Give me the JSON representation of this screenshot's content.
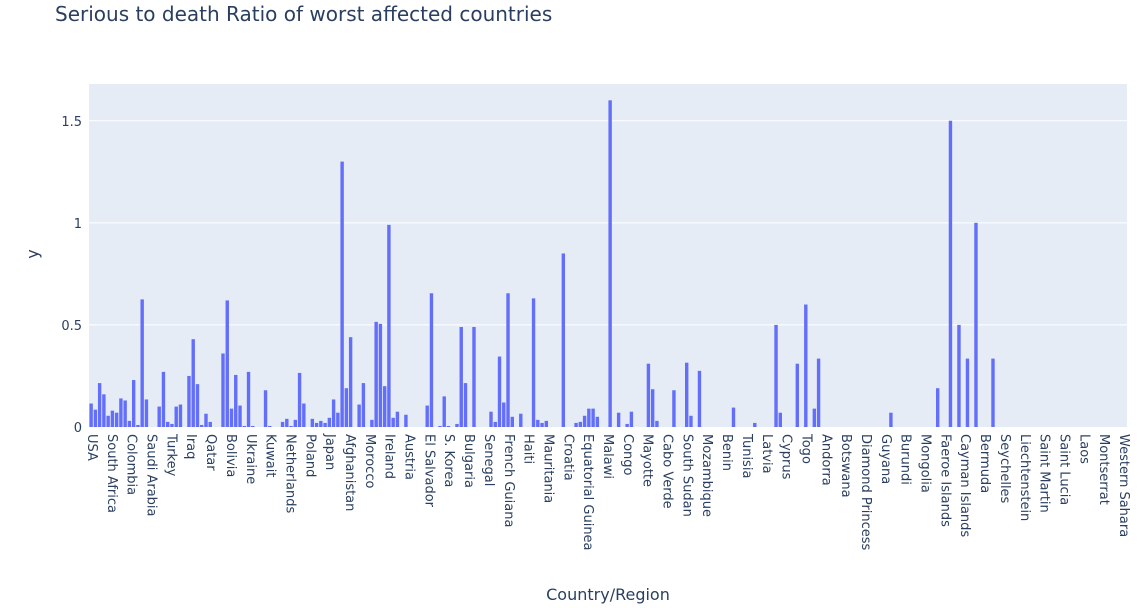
{
  "chart_data": {
    "type": "bar",
    "title": "Serious to death Ratio of worst affected countries",
    "xlabel": "Country/Region",
    "ylabel": "y",
    "ylim": [
      0,
      1.68
    ],
    "yticks": [
      0,
      0.5,
      1,
      1.5
    ],
    "ytick_labels": [
      "0",
      "0.5",
      "1",
      "1.5"
    ],
    "grid": true,
    "bar_color": "#636efa",
    "plot_bg": "#e5ecf6",
    "tick_labels": [
      "USA",
      "South Africa",
      "Colombia",
      "Saudi Arabia",
      "Turkey",
      "Iraq",
      "Qatar",
      "Bolivia",
      "Ukraine",
      "Kuwait",
      "Netherlands",
      "Poland",
      "Japan",
      "Afghanistan",
      "Morocco",
      "Ireland",
      "Austria",
      "El Salvador",
      "S. Korea",
      "Bulgaria",
      "Senegal",
      "French Guiana",
      "Haiti",
      "Mauritania",
      "Croatia",
      "Equatorial Guinea",
      "Malawi",
      "Congo",
      "Mayotte",
      "Cabo Verde",
      "South Sudan",
      "Mozambique",
      "Benin",
      "Tunisia",
      "Latvia",
      "Cyprus",
      "Togo",
      "Andorra",
      "Botswana",
      "Diamond Princess",
      "Guyana",
      "Burundi",
      "Mongolia",
      "Faeroe Islands",
      "Cayman Islands",
      "Bermuda",
      "Seychelles",
      "Liechtenstein",
      "Saint Martin",
      "Saint Lucia",
      "Laos",
      "Montserrat",
      "Western Sahara"
    ],
    "values": [
      0.115,
      0.085,
      0.215,
      0.16,
      0.055,
      0.08,
      0.07,
      0.14,
      0.13,
      0.03,
      0.23,
      0.01,
      0.625,
      0.135,
      0.0,
      0.0,
      0.1,
      0.27,
      0.025,
      0.015,
      0.1,
      0.11,
      0.0,
      0.25,
      0.43,
      0.21,
      0.01,
      0.065,
      0.025,
      0.0,
      0.0,
      0.36,
      0.62,
      0.09,
      0.255,
      0.105,
      0.005,
      0.27,
      0.005,
      0.0,
      0.0,
      0.18,
      0.005,
      0.0,
      0.0,
      0.025,
      0.04,
      0.005,
      0.035,
      0.265,
      0.115,
      0.0,
      0.04,
      0.02,
      0.03,
      0.02,
      0.045,
      0.135,
      0.07,
      1.3,
      0.19,
      0.44,
      0.0,
      0.11,
      0.215,
      0.0,
      0.035,
      0.515,
      0.505,
      0.2,
      0.99,
      0.045,
      0.075,
      0.0,
      0.06,
      0.0,
      0.0,
      0.0,
      0.0,
      0.105,
      0.655,
      0.0,
      0.005,
      0.15,
      0.005,
      0.0,
      0.015,
      0.49,
      0.215,
      0.0,
      0.49,
      0.0,
      0.0,
      0.0,
      0.075,
      0.025,
      0.345,
      0.12,
      0.655,
      0.05,
      0.0,
      0.065,
      0.0,
      0.0,
      0.63,
      0.035,
      0.02,
      0.03,
      0.0,
      0.0,
      0.0,
      0.85,
      0.0,
      0.0,
      0.02,
      0.025,
      0.055,
      0.09,
      0.09,
      0.05,
      0.0,
      0.0,
      1.6,
      0.0,
      0.07,
      0.0,
      0.015,
      0.075,
      0.0,
      0.0,
      0.0,
      0.31,
      0.185,
      0.03,
      0.0,
      0.0,
      0.0,
      0.18,
      0.0,
      0.0,
      0.315,
      0.055,
      0.0,
      0.275,
      0.0,
      0.0,
      0.0,
      0.0,
      0.0,
      0.0,
      0.0,
      0.095,
      0.0,
      0.0,
      0.0,
      0.0,
      0.02,
      0.0,
      0.0,
      0.0,
      0.0,
      0.5,
      0.07,
      0.0,
      0.0,
      0.0,
      0.31,
      0.0,
      0.6,
      0.0,
      0.09,
      0.335,
      0.0,
      0.0,
      0.0,
      0.0,
      0.0,
      0.0,
      0.0,
      0.0,
      0.0,
      0.0,
      0.0,
      0.0,
      0.0,
      0.0,
      0.0,
      0.0,
      0.07,
      0.0,
      0.0,
      0.0,
      0.0,
      0.0,
      0.0,
      0.0,
      0.0,
      0.0,
      0.0,
      0.19,
      0.0,
      0.0,
      1.5,
      0.0,
      0.5,
      0.0,
      0.335,
      0.0,
      1.0,
      0.0,
      0.0,
      0.0,
      0.335,
      0.0,
      0.0,
      0.0,
      0.0,
      0.0,
      0.0,
      0.0,
      0.0,
      0.0,
      0.0,
      0.0,
      0.0,
      0.0,
      0.0,
      0.0,
      0.0,
      0.0,
      0.0,
      0.0,
      0.0,
      0.0,
      0.0,
      0.0,
      0.0,
      0.0,
      0.0,
      0.0,
      0.0,
      0.0,
      0.0,
      0.0
    ]
  }
}
